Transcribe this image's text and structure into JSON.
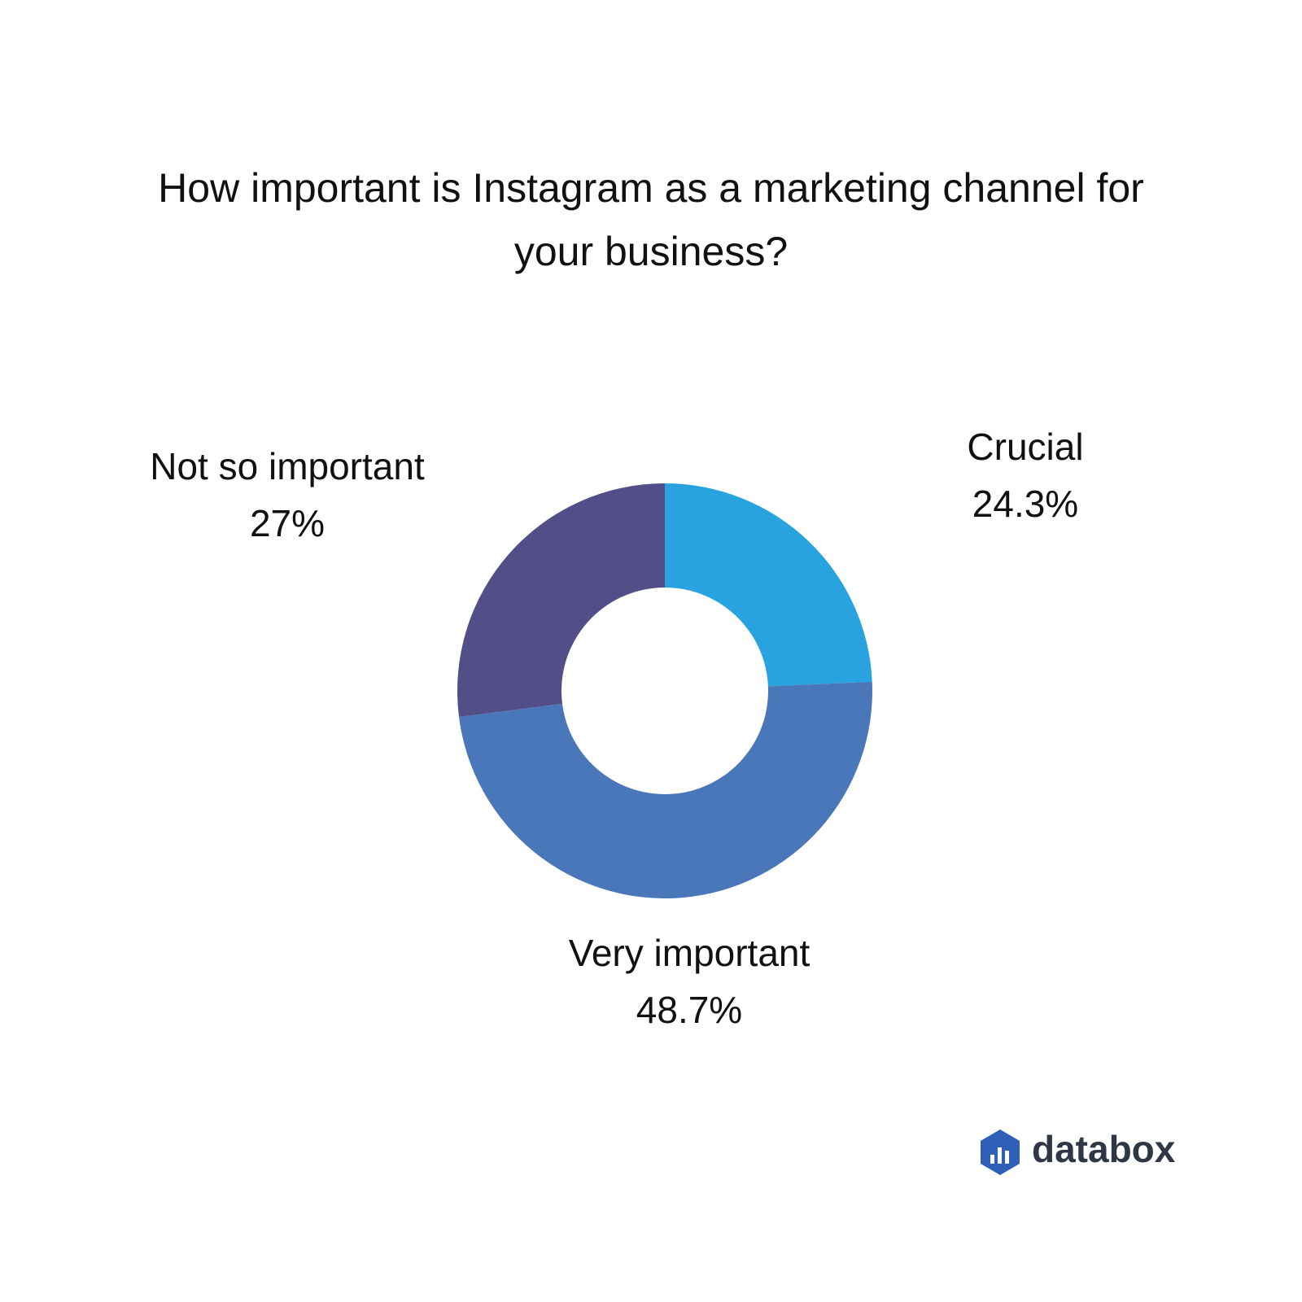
{
  "chart_data": {
    "type": "donut",
    "title": "How important is Instagram as a marketing channel for your business?",
    "categories": [
      "Crucial",
      "Very important",
      "Not so important"
    ],
    "values": [
      24.3,
      48.7,
      27
    ],
    "value_labels": [
      "24.3%",
      "48.7%",
      "27%"
    ],
    "colors": [
      "#29a3df",
      "#4a77b9",
      "#524e88"
    ]
  },
  "brand": "databox"
}
